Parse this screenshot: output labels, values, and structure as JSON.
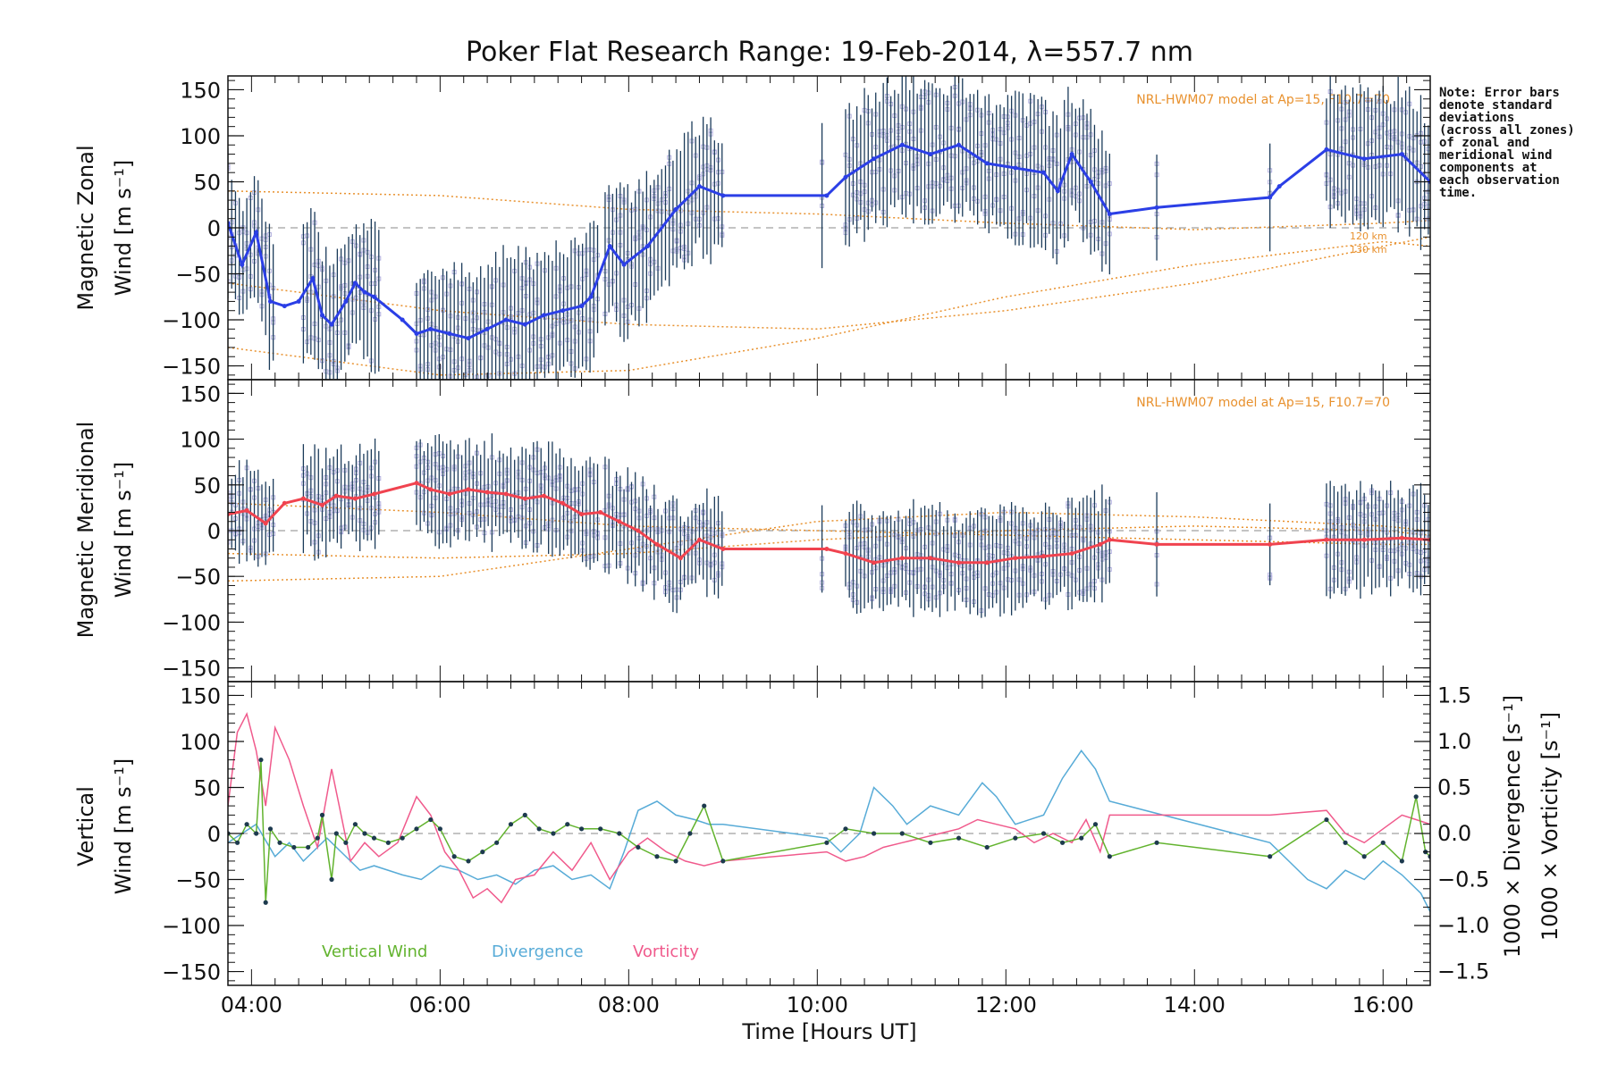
{
  "colors": {
    "zonal": "#2b3fe6",
    "meridional": "#f0434f",
    "vertical": "#62b32e",
    "divergence": "#57abd7",
    "vorticity": "#f05a8c",
    "model": "#e8912e",
    "errorbar": "#1b3b5a",
    "scatter": "#b4b2e0"
  },
  "chart_data": {
    "type": "line",
    "title": "Poker Flat Research Range: 19-Feb-2014, λ=557.7 nm",
    "xlabel": "Time [Hours UT]",
    "xlim": [
      3.75,
      16.5
    ],
    "x_ticks": [
      4,
      6,
      8,
      10,
      12,
      14,
      16
    ],
    "x_tick_labels": [
      "04:00",
      "06:00",
      "08:00",
      "10:00",
      "12:00",
      "14:00",
      "16:00"
    ],
    "note": [
      "Note: Error bars",
      "denote standard",
      "deviations",
      "(across all zones)",
      "of zonal and",
      "meridional wind",
      "components at",
      "each observation",
      "time."
    ],
    "panels": [
      {
        "id": "zonal",
        "ylabel": [
          "Magnetic Zonal",
          "Wind [m s⁻¹]"
        ],
        "ylim": [
          -165,
          165
        ],
        "y_ticks": [
          -150,
          -100,
          -50,
          0,
          50,
          100,
          150
        ],
        "annotation": "NRL-HWM07 model at Ap=15, F10.7=70",
        "model_labels": [
          "120 km",
          "130 km"
        ],
        "series": [
          {
            "x": [
              3.75,
              3.9,
              4.05,
              4.2,
              4.35,
              4.5,
              4.65,
              4.75,
              4.85,
              5.0,
              5.1,
              5.2,
              5.3,
              5.6,
              5.75,
              5.9,
              6.1,
              6.3,
              6.5,
              6.7,
              6.9,
              7.1,
              7.3,
              7.5,
              7.6,
              7.8,
              7.95,
              8.2,
              8.5,
              8.75,
              9.0,
              10.1,
              10.3,
              10.6,
              10.9,
              11.2,
              11.5,
              11.8,
              12.1,
              12.4,
              12.55,
              12.7,
              12.9,
              13.1,
              13.6,
              14.8,
              14.9,
              15.4,
              15.8,
              16.2,
              16.5
            ],
            "y": [
              5,
              -40,
              -5,
              -80,
              -85,
              -80,
              -55,
              -95,
              -105,
              -80,
              -60,
              -70,
              -75,
              -100,
              -115,
              -110,
              -115,
              -120,
              -110,
              -100,
              -105,
              -95,
              -90,
              -85,
              -75,
              -20,
              -40,
              -20,
              20,
              45,
              35,
              35,
              55,
              75,
              90,
              80,
              90,
              70,
              65,
              60,
              40,
              80,
              50,
              15,
              22,
              33,
              45,
              85,
              75,
              80,
              50
            ]
          }
        ],
        "model_curves": [
          {
            "x": [
              3.75,
              6,
              8,
              10,
              12,
              14,
              16,
              16.5
            ],
            "y": [
              40,
              35,
              20,
              15,
              5,
              -2,
              5,
              8
            ]
          },
          {
            "x": [
              3.75,
              6,
              8,
              10,
              12,
              14,
              16,
              16.5
            ],
            "y": [
              -60,
              -90,
              -105,
              -110,
              -90,
              -60,
              -20,
              -10
            ]
          },
          {
            "x": [
              3.75,
              6,
              8,
              10,
              12,
              14,
              16,
              16.5
            ],
            "y": [
              -130,
              -160,
              -155,
              -120,
              -75,
              -40,
              -15,
              -20
            ]
          }
        ]
      },
      {
        "id": "meridional",
        "ylabel": [
          "Magnetic Meridional",
          "Wind [m s⁻¹]"
        ],
        "ylim": [
          -165,
          165
        ],
        "y_ticks": [
          -150,
          -100,
          -50,
          0,
          50,
          100,
          150
        ],
        "annotation": "NRL-HWM07 model at Ap=15, F10.7=70",
        "series": [
          {
            "x": [
              3.75,
              3.95,
              4.15,
              4.35,
              4.55,
              4.75,
              4.9,
              5.1,
              5.3,
              5.75,
              5.9,
              6.1,
              6.3,
              6.5,
              6.7,
              6.9,
              7.1,
              7.3,
              7.5,
              7.7,
              7.9,
              8.1,
              8.3,
              8.55,
              8.75,
              9.0,
              10.1,
              10.3,
              10.6,
              10.9,
              11.2,
              11.5,
              11.8,
              12.1,
              12.4,
              12.7,
              13.0,
              13.1,
              13.6,
              14.8,
              15.4,
              15.8,
              16.2,
              16.5
            ],
            "y": [
              18,
              22,
              8,
              30,
              35,
              28,
              38,
              35,
              40,
              52,
              45,
              40,
              45,
              42,
              40,
              35,
              38,
              30,
              18,
              20,
              10,
              0,
              -15,
              -30,
              -10,
              -20,
              -20,
              -25,
              -35,
              -30,
              -30,
              -35,
              -35,
              -30,
              -28,
              -25,
              -15,
              -10,
              -15,
              -15,
              -10,
              -10,
              -8,
              -10
            ]
          }
        ],
        "model_curves": [
          {
            "x": [
              3.75,
              6,
              8,
              10,
              12,
              14,
              16,
              16.5
            ],
            "y": [
              30,
              20,
              5,
              0,
              -5,
              -10,
              -15,
              -15
            ]
          },
          {
            "x": [
              3.75,
              6,
              8,
              10,
              12,
              14,
              16,
              16.5
            ],
            "y": [
              -25,
              -30,
              -25,
              -10,
              0,
              5,
              0,
              -5
            ]
          },
          {
            "x": [
              3.75,
              6,
              8,
              10,
              12,
              14,
              16,
              16.5
            ],
            "y": [
              -55,
              -50,
              -20,
              10,
              20,
              15,
              5,
              0
            ]
          }
        ]
      },
      {
        "id": "vertical",
        "ylabel": [
          "Vertical",
          "Wind [m s⁻¹]"
        ],
        "ylim": [
          -165,
          165
        ],
        "y_ticks": [
          -150,
          -100,
          -50,
          0,
          50,
          100,
          150
        ],
        "y2_ticks": [
          -1.5,
          -1.0,
          -0.5,
          0.0,
          0.5,
          1.0,
          1.5
        ],
        "y2_tick_labels": [
          "−1.5",
          "−1.0",
          "−0.5",
          "0.0",
          "0.5",
          "1.0",
          "1.5"
        ],
        "y2_labels": {
          "divergence": "1000 × Divergence [s⁻¹]",
          "vorticity": "1000 × Vorticity [s⁻¹]"
        },
        "legend": [
          {
            "label": "Vertical Wind",
            "color_key": "vertical"
          },
          {
            "label": "Divergence",
            "color_key": "divergence"
          },
          {
            "label": "Vorticity",
            "color_key": "vorticity"
          }
        ],
        "series": [
          {
            "name": "Vertical Wind",
            "x": [
              3.75,
              3.85,
              3.95,
              4.05,
              4.1,
              4.15,
              4.2,
              4.3,
              4.45,
              4.6,
              4.7,
              4.75,
              4.85,
              4.9,
              5.0,
              5.1,
              5.2,
              5.3,
              5.45,
              5.6,
              5.75,
              5.9,
              6.0,
              6.15,
              6.3,
              6.45,
              6.6,
              6.75,
              6.9,
              7.05,
              7.2,
              7.35,
              7.5,
              7.7,
              7.9,
              8.1,
              8.3,
              8.5,
              8.65,
              8.8,
              9.0,
              10.1,
              10.3,
              10.6,
              10.9,
              11.2,
              11.5,
              11.8,
              12.1,
              12.4,
              12.6,
              12.8,
              12.95,
              13.1,
              13.6,
              14.8,
              15.4,
              15.6,
              15.8,
              16.0,
              16.2,
              16.35,
              16.45,
              16.5
            ],
            "y": [
              0,
              -10,
              10,
              0,
              80,
              -75,
              5,
              -10,
              -15,
              -15,
              -5,
              20,
              -50,
              0,
              -10,
              10,
              0,
              -5,
              -10,
              -5,
              5,
              15,
              5,
              -25,
              -30,
              -20,
              -10,
              10,
              20,
              5,
              0,
              10,
              5,
              5,
              0,
              -15,
              -25,
              -30,
              0,
              30,
              -30,
              -10,
              5,
              0,
              0,
              -10,
              -5,
              -15,
              -5,
              0,
              -10,
              -5,
              10,
              -25,
              -10,
              -25,
              15,
              -10,
              -25,
              -10,
              -30,
              40,
              -20,
              -25
            ]
          },
          {
            "name": "Divergence",
            "x": [
              3.75,
              3.9,
              4.05,
              4.25,
              4.4,
              4.55,
              4.7,
              4.8,
              4.95,
              5.15,
              5.3,
              5.6,
              5.8,
              6.0,
              6.2,
              6.4,
              6.6,
              6.8,
              7.0,
              7.2,
              7.4,
              7.6,
              7.8,
              7.95,
              8.1,
              8.3,
              8.5,
              8.7,
              8.85,
              9.0,
              10.1,
              10.25,
              10.45,
              10.6,
              10.8,
              10.95,
              11.2,
              11.5,
              11.75,
              11.9,
              12.1,
              12.4,
              12.6,
              12.8,
              12.95,
              13.1,
              14.8,
              15.0,
              15.2,
              15.4,
              15.6,
              15.8,
              16.0,
              16.2,
              16.4,
              16.5
            ],
            "y": [
              -0.1,
              0.0,
              0.1,
              -0.25,
              -0.1,
              -0.3,
              -0.15,
              -0.05,
              -0.2,
              -0.4,
              -0.35,
              -0.45,
              -0.5,
              -0.35,
              -0.4,
              -0.5,
              -0.45,
              -0.55,
              -0.4,
              -0.35,
              -0.5,
              -0.45,
              -0.6,
              -0.2,
              0.25,
              0.35,
              0.2,
              0.15,
              0.1,
              0.1,
              -0.05,
              -0.2,
              0.0,
              0.5,
              0.3,
              0.1,
              0.3,
              0.2,
              0.55,
              0.4,
              0.1,
              0.2,
              0.6,
              0.9,
              0.7,
              0.35,
              -0.1,
              -0.3,
              -0.5,
              -0.6,
              -0.4,
              -0.5,
              -0.3,
              -0.45,
              -0.65,
              -0.85
            ]
          },
          {
            "name": "Vorticity",
            "x": [
              3.75,
              3.85,
              3.95,
              4.05,
              4.15,
              4.25,
              4.4,
              4.55,
              4.7,
              4.85,
              4.95,
              5.05,
              5.2,
              5.35,
              5.55,
              5.75,
              5.9,
              6.05,
              6.2,
              6.35,
              6.5,
              6.65,
              6.8,
              7.0,
              7.2,
              7.4,
              7.6,
              7.8,
              8.0,
              8.2,
              8.4,
              8.6,
              8.8,
              9.0,
              10.1,
              10.3,
              10.5,
              10.7,
              10.9,
              11.1,
              11.3,
              11.5,
              11.7,
              11.9,
              12.1,
              12.3,
              12.5,
              12.7,
              12.85,
              13.0,
              13.1,
              14.8,
              15.4,
              15.6,
              15.8,
              16.0,
              16.2,
              16.35,
              16.5
            ],
            "y": [
              0.3,
              1.1,
              1.3,
              0.9,
              0.3,
              1.15,
              0.8,
              0.3,
              -0.15,
              0.7,
              0.2,
              -0.3,
              -0.1,
              -0.25,
              -0.1,
              0.4,
              0.2,
              -0.2,
              -0.4,
              -0.7,
              -0.6,
              -0.75,
              -0.5,
              -0.45,
              -0.2,
              -0.4,
              -0.1,
              -0.5,
              -0.2,
              -0.05,
              -0.2,
              -0.3,
              -0.35,
              -0.3,
              -0.2,
              -0.3,
              -0.25,
              -0.15,
              -0.1,
              -0.05,
              0.0,
              0.05,
              0.15,
              0.1,
              0.05,
              -0.1,
              0.0,
              -0.1,
              0.15,
              -0.2,
              0.2,
              0.2,
              0.25,
              0.0,
              -0.1,
              0.05,
              0.2,
              0.15,
              0.1
            ]
          }
        ]
      }
    ]
  }
}
